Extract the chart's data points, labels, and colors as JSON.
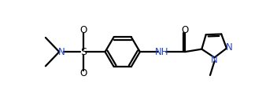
{
  "bg_color": "#ffffff",
  "line_color": "#000000",
  "n_color": "#2244cc",
  "line_width": 1.6,
  "font_size": 8.5,
  "figsize": [
    3.52,
    1.25
  ],
  "dpi": 100,
  "xlim": [
    -1.0,
    8.5
  ],
  "ylim": [
    -1.6,
    1.8
  ],
  "ring_inner_scale": 0.73
}
